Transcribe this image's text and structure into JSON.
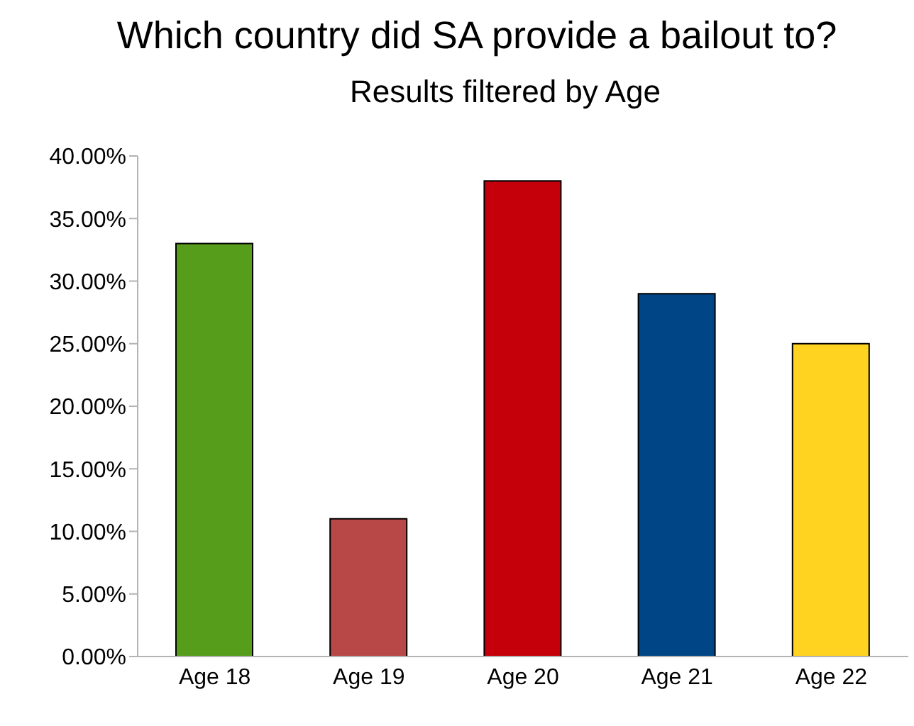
{
  "chart_data": {
    "type": "bar",
    "title": "Which country did SA provide a bailout to?",
    "subtitle": "Results filtered by Age",
    "categories": [
      "Age 18",
      "Age 19",
      "Age 20",
      "Age 21",
      "Age 22"
    ],
    "values": [
      33,
      11,
      38,
      29,
      25
    ],
    "colors": [
      "#579d1c",
      "#b84747",
      "#c5000b",
      "#004586",
      "#ffd320"
    ],
    "ylim": [
      0,
      40
    ],
    "yticks": [
      {
        "value": 0,
        "label": "0.00%"
      },
      {
        "value": 5,
        "label": "5.00%"
      },
      {
        "value": 10,
        "label": "10.00%"
      },
      {
        "value": 15,
        "label": "15.00%"
      },
      {
        "value": 20,
        "label": "20.00%"
      },
      {
        "value": 25,
        "label": "25.00%"
      },
      {
        "value": 30,
        "label": "30.00%"
      },
      {
        "value": 35,
        "label": "35.00%"
      },
      {
        "value": 40,
        "label": "40.00%"
      }
    ],
    "grid": false,
    "legend": false
  }
}
